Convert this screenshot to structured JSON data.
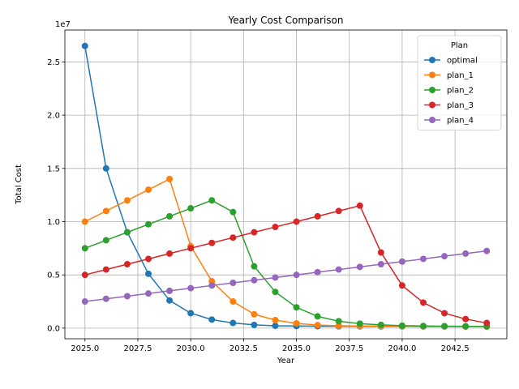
{
  "chart_data": {
    "type": "line",
    "title": "Yearly Cost Comparison",
    "xlabel": "Year",
    "ylabel": "Total Cost",
    "y_scale_label": "1e7",
    "xlim": [
      2024.05,
      2044.95
    ],
    "ylim": [
      -1000000,
      28000000
    ],
    "x_ticks": [
      2025.0,
      2027.5,
      2030.0,
      2032.5,
      2035.0,
      2037.5,
      2040.0,
      2042.5
    ],
    "x_tick_labels": [
      "2025.0",
      "2027.5",
      "2030.0",
      "2032.5",
      "2035.0",
      "2037.5",
      "2040.0",
      "2042.5"
    ],
    "y_ticks": [
      0,
      5000000,
      10000000,
      15000000,
      20000000,
      25000000
    ],
    "y_tick_labels": [
      "0.0",
      "0.5",
      "1.0",
      "1.5",
      "2.0",
      "2.5"
    ],
    "grid": true,
    "legend": {
      "title": "Plan",
      "placement": "top-right"
    },
    "x": [
      2025,
      2026,
      2027,
      2028,
      2029,
      2030,
      2031,
      2032,
      2033,
      2034,
      2035,
      2036,
      2037,
      2038,
      2039,
      2040,
      2041,
      2042,
      2043,
      2044
    ],
    "series": [
      {
        "name": "optimal",
        "color": "#1f77b4",
        "values": [
          26500000,
          15000000,
          9000000,
          5100000,
          2600000,
          1400000,
          800000,
          480000,
          300000,
          220000,
          200000,
          180000,
          170000,
          165000,
          160000,
          160000,
          155000,
          155000,
          150000,
          150000
        ]
      },
      {
        "name": "plan_1",
        "color": "#ff7f0e",
        "values": [
          10000000,
          11000000,
          12000000,
          13000000,
          14000000,
          7700000,
          4400000,
          2500000,
          1300000,
          750000,
          450000,
          280000,
          220000,
          200000,
          190000,
          180000,
          170000,
          165000,
          160000,
          150000
        ]
      },
      {
        "name": "plan_2",
        "color": "#2ca02c",
        "values": [
          7500000,
          8250000,
          9000000,
          9750000,
          10500000,
          11250000,
          12000000,
          10900000,
          5800000,
          3400000,
          1950000,
          1100000,
          650000,
          420000,
          300000,
          230000,
          200000,
          180000,
          170000,
          160000
        ]
      },
      {
        "name": "plan_3",
        "color": "#d62728",
        "values": [
          5000000,
          5500000,
          6000000,
          6500000,
          7000000,
          7500000,
          8000000,
          8500000,
          9000000,
          9500000,
          10000000,
          10500000,
          11000000,
          11500000,
          7100000,
          4000000,
          2400000,
          1400000,
          850000,
          480000
        ]
      },
      {
        "name": "plan_4",
        "color": "#9467bd",
        "values": [
          2500000,
          2750000,
          3000000,
          3250000,
          3500000,
          3750000,
          4000000,
          4250000,
          4500000,
          4750000,
          5000000,
          5250000,
          5500000,
          5750000,
          6000000,
          6250000,
          6500000,
          6750000,
          7000000,
          7250000
        ]
      }
    ]
  }
}
